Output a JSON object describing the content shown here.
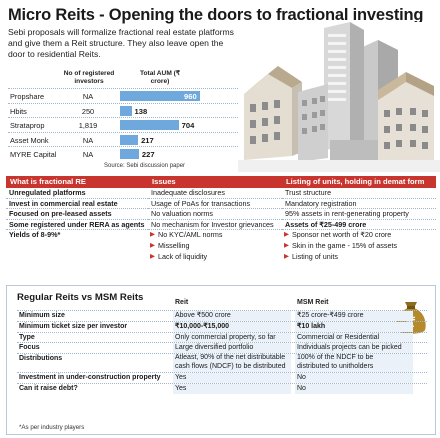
{
  "header": {
    "headline": "Micro Reits - Opening the doors to fractional investing",
    "lede": "Sebi proposals will formalize fractional real estate platforms and give them a Reit structure. They also leave open the door to residential Reits."
  },
  "aum_table": {
    "col_registered": "No of registered investors",
    "col_aum": "Total AUM (₹ crore)",
    "source": "Source: Sebi discussion paper",
    "rows": [
      {
        "platform": "Propshare",
        "investors": "NA",
        "aum_label": "960"
      },
      {
        "platform": "Hbits",
        "investors": "250",
        "aum_label": "138"
      },
      {
        "platform": "Strataprop",
        "investors": "1,819",
        "aum_label": "704"
      },
      {
        "platform": "Asset Monk",
        "investors": "NA",
        "aum_label": "217"
      },
      {
        "platform": "MYRE Capital",
        "investors": "NA",
        "aum_label": "227"
      }
    ]
  },
  "chart_data": {
    "type": "bar",
    "categories": [
      "Propshare",
      "Hbits",
      "Strataprop",
      "Asset Monk",
      "MYRE Capital"
    ],
    "values": [
      960,
      138,
      704,
      217,
      227
    ],
    "title": "",
    "xlabel": "",
    "ylabel": "Total AUM (₹ crore)",
    "color": "#6fa8dc"
  },
  "comparison": {
    "headers": [
      "What is fractional RE",
      "Issues",
      "Listing of units, holding in demat form"
    ],
    "fractional_re": [
      "Unregulated platforms",
      "Invest in commercial real estate",
      "Focused on pre-leased assets",
      "Some registered under RERA as agents",
      "Yields of 8-9%*"
    ],
    "issues": [
      "Inadequate disclosures",
      "Usage of PoAs for transactions",
      "No valuation norms",
      "No mechanism for Investor grievances"
    ],
    "issue_bullets": [
      "No KYC/AML norms",
      "Misselling",
      "Lack of liquidity"
    ],
    "listing": [
      "Trust structure",
      "Mandatory registration",
      "95% assets in rent-generating property",
      "Assets of ₹25-499 crore"
    ],
    "listing_bullets": [
      "Sponsor net worth of ₹20 crore",
      "Skin in the game - 15% of assets",
      "Listing of units"
    ]
  },
  "reit_compare": {
    "title": "Regular Reits vs MSM Reits",
    "col_reit": "Reit",
    "col_msm": "MSM Reit",
    "note": "*As per industry players",
    "rows": [
      {
        "label": "Minimum size",
        "reit": "Above ₹500 crore",
        "msm": "₹25 crore-₹499 crore"
      },
      {
        "label": "Minimum ticket size per investor",
        "reit": "₹10,000-₹15,000",
        "msm": "₹10 lakh"
      },
      {
        "label": "Type",
        "reit": "Only commercial property, so far",
        "msm": "Commercial or Residential"
      },
      {
        "label": "Focus",
        "reit": "Large diversified portfolio",
        "msm": "Individuals projects can be picked"
      },
      {
        "label": "Distributions",
        "reit_a": "Atleast, 90% of the net distributable",
        "reit_b": "cash flows (NDCF) to be distributed",
        "msm_a": "100% of the NDCF to be",
        "msm_b": "distributed to unitholders"
      },
      {
        "label": "Investment in under-construction property",
        "reit": "Yes",
        "msm": "No"
      },
      {
        "label": "Can it raise debt?",
        "reit": "Yes",
        "msm": "No"
      }
    ]
  },
  "icons": {
    "rupee_bag": "money-bag-icon",
    "bullet": "triangle-bullet-icon"
  },
  "colors": {
    "accent_red": "#c8352f",
    "bar_blue": "#6fa8dc",
    "cell_blue": "#eaf1f8"
  }
}
